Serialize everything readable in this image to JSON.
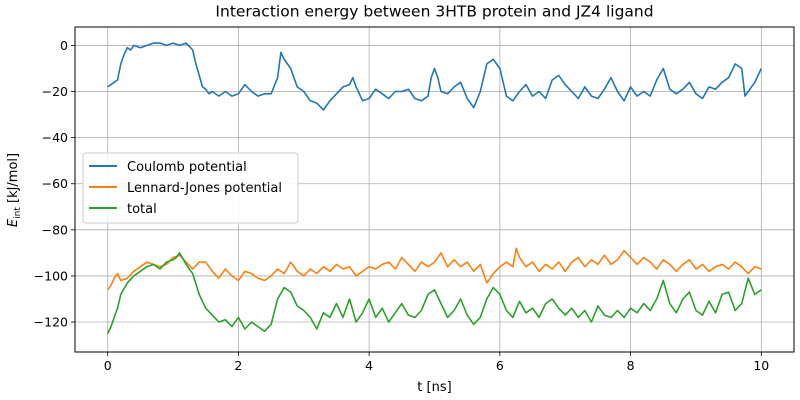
{
  "chart_data": {
    "type": "line",
    "title": "Interaction energy between 3HTB protein and JZ4 ligand",
    "xlabel": "t [ns]",
    "ylabel_main": "E",
    "ylabel_sub": "int",
    "ylabel_unit": " [kJ/mol]",
    "xlim": [
      -0.5,
      10.5
    ],
    "ylim": [
      -133,
      8
    ],
    "xticks": [
      0,
      2,
      4,
      6,
      8,
      10
    ],
    "yticks": [
      0,
      -20,
      -40,
      -60,
      -80,
      -100,
      -120
    ],
    "grid": true,
    "legend_position": "center-left",
    "series": [
      {
        "name": "Coulomb potential",
        "color": "#1f77b4",
        "points": [
          [
            0.0,
            -18
          ],
          [
            0.1,
            -16
          ],
          [
            0.15,
            -15
          ],
          [
            0.2,
            -8
          ],
          [
            0.25,
            -4
          ],
          [
            0.3,
            -1
          ],
          [
            0.35,
            -2
          ],
          [
            0.4,
            0
          ],
          [
            0.5,
            -1
          ],
          [
            0.6,
            0
          ],
          [
            0.7,
            1
          ],
          [
            0.8,
            1
          ],
          [
            0.9,
            0
          ],
          [
            1.0,
            1
          ],
          [
            1.1,
            0
          ],
          [
            1.2,
            1
          ],
          [
            1.3,
            -2
          ],
          [
            1.35,
            -8
          ],
          [
            1.4,
            -13
          ],
          [
            1.45,
            -18
          ],
          [
            1.5,
            -19
          ],
          [
            1.55,
            -21
          ],
          [
            1.6,
            -20
          ],
          [
            1.7,
            -22
          ],
          [
            1.8,
            -20
          ],
          [
            1.9,
            -22
          ],
          [
            2.0,
            -21
          ],
          [
            2.1,
            -17
          ],
          [
            2.2,
            -20
          ],
          [
            2.3,
            -22
          ],
          [
            2.4,
            -21
          ],
          [
            2.5,
            -21
          ],
          [
            2.6,
            -14
          ],
          [
            2.65,
            -3
          ],
          [
            2.7,
            -6
          ],
          [
            2.8,
            -10
          ],
          [
            2.9,
            -18
          ],
          [
            3.0,
            -20
          ],
          [
            3.1,
            -24
          ],
          [
            3.2,
            -25
          ],
          [
            3.3,
            -28
          ],
          [
            3.4,
            -24
          ],
          [
            3.5,
            -21
          ],
          [
            3.6,
            -18
          ],
          [
            3.7,
            -17
          ],
          [
            3.75,
            -14
          ],
          [
            3.8,
            -18
          ],
          [
            3.9,
            -24
          ],
          [
            4.0,
            -23
          ],
          [
            4.1,
            -19
          ],
          [
            4.2,
            -21
          ],
          [
            4.3,
            -23
          ],
          [
            4.4,
            -20
          ],
          [
            4.5,
            -20
          ],
          [
            4.6,
            -19
          ],
          [
            4.7,
            -23
          ],
          [
            4.8,
            -24
          ],
          [
            4.9,
            -22
          ],
          [
            4.95,
            -14
          ],
          [
            5.0,
            -10
          ],
          [
            5.05,
            -14
          ],
          [
            5.1,
            -20
          ],
          [
            5.2,
            -21
          ],
          [
            5.3,
            -18
          ],
          [
            5.4,
            -16
          ],
          [
            5.5,
            -23
          ],
          [
            5.6,
            -27
          ],
          [
            5.7,
            -20
          ],
          [
            5.8,
            -8
          ],
          [
            5.9,
            -6
          ],
          [
            6.0,
            -10
          ],
          [
            6.1,
            -22
          ],
          [
            6.2,
            -24
          ],
          [
            6.3,
            -20
          ],
          [
            6.4,
            -17
          ],
          [
            6.5,
            -22
          ],
          [
            6.6,
            -20
          ],
          [
            6.7,
            -23
          ],
          [
            6.8,
            -15
          ],
          [
            6.9,
            -13
          ],
          [
            7.0,
            -17
          ],
          [
            7.1,
            -20
          ],
          [
            7.2,
            -23
          ],
          [
            7.3,
            -18
          ],
          [
            7.4,
            -22
          ],
          [
            7.5,
            -23
          ],
          [
            7.6,
            -19
          ],
          [
            7.7,
            -14
          ],
          [
            7.8,
            -20
          ],
          [
            7.9,
            -24
          ],
          [
            8.0,
            -18
          ],
          [
            8.1,
            -22
          ],
          [
            8.2,
            -20
          ],
          [
            8.3,
            -22
          ],
          [
            8.4,
            -15
          ],
          [
            8.5,
            -10
          ],
          [
            8.6,
            -19
          ],
          [
            8.7,
            -21
          ],
          [
            8.8,
            -19
          ],
          [
            8.9,
            -16
          ],
          [
            9.0,
            -21
          ],
          [
            9.1,
            -23
          ],
          [
            9.2,
            -18
          ],
          [
            9.3,
            -19
          ],
          [
            9.4,
            -16
          ],
          [
            9.5,
            -14
          ],
          [
            9.6,
            -8
          ],
          [
            9.7,
            -10
          ],
          [
            9.75,
            -22
          ],
          [
            9.8,
            -20
          ],
          [
            9.9,
            -16
          ],
          [
            10.0,
            -10
          ]
        ]
      },
      {
        "name": "Lennard-Jones potential",
        "color": "#ff7f0e",
        "points": [
          [
            0.0,
            -106
          ],
          [
            0.05,
            -104
          ],
          [
            0.1,
            -101
          ],
          [
            0.15,
            -99
          ],
          [
            0.2,
            -102
          ],
          [
            0.3,
            -101
          ],
          [
            0.4,
            -98
          ],
          [
            0.5,
            -96
          ],
          [
            0.6,
            -94
          ],
          [
            0.7,
            -95
          ],
          [
            0.8,
            -96
          ],
          [
            0.9,
            -95
          ],
          [
            1.0,
            -92
          ],
          [
            1.1,
            -91
          ],
          [
            1.2,
            -94
          ],
          [
            1.3,
            -97
          ],
          [
            1.4,
            -94
          ],
          [
            1.5,
            -94
          ],
          [
            1.6,
            -98
          ],
          [
            1.7,
            -101
          ],
          [
            1.8,
            -97
          ],
          [
            1.9,
            -100
          ],
          [
            2.0,
            -102
          ],
          [
            2.1,
            -98
          ],
          [
            2.2,
            -99
          ],
          [
            2.3,
            -101
          ],
          [
            2.4,
            -102
          ],
          [
            2.5,
            -100
          ],
          [
            2.6,
            -97
          ],
          [
            2.7,
            -99
          ],
          [
            2.8,
            -94
          ],
          [
            2.9,
            -98
          ],
          [
            3.0,
            -100
          ],
          [
            3.1,
            -97
          ],
          [
            3.2,
            -99
          ],
          [
            3.3,
            -96
          ],
          [
            3.4,
            -98
          ],
          [
            3.5,
            -95
          ],
          [
            3.6,
            -97
          ],
          [
            3.7,
            -96
          ],
          [
            3.8,
            -100
          ],
          [
            3.9,
            -98
          ],
          [
            4.0,
            -96
          ],
          [
            4.1,
            -97
          ],
          [
            4.2,
            -95
          ],
          [
            4.3,
            -94
          ],
          [
            4.4,
            -97
          ],
          [
            4.5,
            -92
          ],
          [
            4.6,
            -95
          ],
          [
            4.7,
            -98
          ],
          [
            4.8,
            -94
          ],
          [
            4.9,
            -96
          ],
          [
            5.0,
            -94
          ],
          [
            5.1,
            -90
          ],
          [
            5.2,
            -96
          ],
          [
            5.3,
            -93
          ],
          [
            5.4,
            -96
          ],
          [
            5.5,
            -94
          ],
          [
            5.6,
            -98
          ],
          [
            5.7,
            -95
          ],
          [
            5.8,
            -103
          ],
          [
            5.9,
            -99
          ],
          [
            6.0,
            -96
          ],
          [
            6.1,
            -94
          ],
          [
            6.2,
            -96
          ],
          [
            6.25,
            -88
          ],
          [
            6.3,
            -92
          ],
          [
            6.4,
            -96
          ],
          [
            6.5,
            -94
          ],
          [
            6.6,
            -98
          ],
          [
            6.7,
            -95
          ],
          [
            6.8,
            -97
          ],
          [
            6.9,
            -94
          ],
          [
            7.0,
            -98
          ],
          [
            7.1,
            -94
          ],
          [
            7.2,
            -92
          ],
          [
            7.3,
            -96
          ],
          [
            7.4,
            -93
          ],
          [
            7.5,
            -95
          ],
          [
            7.6,
            -91
          ],
          [
            7.7,
            -95
          ],
          [
            7.8,
            -93
          ],
          [
            7.9,
            -89
          ],
          [
            8.0,
            -92
          ],
          [
            8.1,
            -95
          ],
          [
            8.2,
            -92
          ],
          [
            8.3,
            -94
          ],
          [
            8.4,
            -97
          ],
          [
            8.5,
            -93
          ],
          [
            8.6,
            -95
          ],
          [
            8.7,
            -98
          ],
          [
            8.8,
            -95
          ],
          [
            8.9,
            -93
          ],
          [
            9.0,
            -97
          ],
          [
            9.1,
            -95
          ],
          [
            9.2,
            -98
          ],
          [
            9.3,
            -96
          ],
          [
            9.4,
            -95
          ],
          [
            9.5,
            -97
          ],
          [
            9.6,
            -94
          ],
          [
            9.7,
            -96
          ],
          [
            9.8,
            -99
          ],
          [
            9.9,
            -96
          ],
          [
            10.0,
            -97
          ]
        ]
      },
      {
        "name": "total",
        "color": "#2ca02c",
        "points": [
          [
            0.0,
            -125
          ],
          [
            0.05,
            -122
          ],
          [
            0.1,
            -118
          ],
          [
            0.15,
            -114
          ],
          [
            0.2,
            -108
          ],
          [
            0.3,
            -103
          ],
          [
            0.4,
            -100
          ],
          [
            0.5,
            -98
          ],
          [
            0.6,
            -96
          ],
          [
            0.7,
            -95
          ],
          [
            0.8,
            -97
          ],
          [
            0.9,
            -94
          ],
          [
            1.0,
            -93
          ],
          [
            1.05,
            -92
          ],
          [
            1.1,
            -90
          ],
          [
            1.2,
            -95
          ],
          [
            1.3,
            -99
          ],
          [
            1.4,
            -108
          ],
          [
            1.5,
            -114
          ],
          [
            1.6,
            -117
          ],
          [
            1.7,
            -120
          ],
          [
            1.8,
            -119
          ],
          [
            1.9,
            -122
          ],
          [
            2.0,
            -118
          ],
          [
            2.1,
            -123
          ],
          [
            2.2,
            -120
          ],
          [
            2.3,
            -122
          ],
          [
            2.4,
            -124
          ],
          [
            2.5,
            -121
          ],
          [
            2.6,
            -110
          ],
          [
            2.7,
            -105
          ],
          [
            2.8,
            -107
          ],
          [
            2.9,
            -113
          ],
          [
            3.0,
            -115
          ],
          [
            3.1,
            -118
          ],
          [
            3.2,
            -123
          ],
          [
            3.3,
            -116
          ],
          [
            3.4,
            -118
          ],
          [
            3.5,
            -112
          ],
          [
            3.6,
            -118
          ],
          [
            3.7,
            -110
          ],
          [
            3.8,
            -120
          ],
          [
            3.9,
            -116
          ],
          [
            4.0,
            -110
          ],
          [
            4.1,
            -118
          ],
          [
            4.2,
            -114
          ],
          [
            4.3,
            -120
          ],
          [
            4.4,
            -116
          ],
          [
            4.5,
            -112
          ],
          [
            4.6,
            -117
          ],
          [
            4.7,
            -118
          ],
          [
            4.8,
            -115
          ],
          [
            4.9,
            -108
          ],
          [
            5.0,
            -106
          ],
          [
            5.1,
            -112
          ],
          [
            5.2,
            -118
          ],
          [
            5.3,
            -115
          ],
          [
            5.4,
            -110
          ],
          [
            5.5,
            -117
          ],
          [
            5.6,
            -121
          ],
          [
            5.7,
            -118
          ],
          [
            5.8,
            -110
          ],
          [
            5.9,
            -105
          ],
          [
            6.0,
            -108
          ],
          [
            6.1,
            -115
          ],
          [
            6.2,
            -118
          ],
          [
            6.3,
            -111
          ],
          [
            6.4,
            -116
          ],
          [
            6.5,
            -114
          ],
          [
            6.6,
            -118
          ],
          [
            6.7,
            -112
          ],
          [
            6.8,
            -110
          ],
          [
            6.9,
            -114
          ],
          [
            7.0,
            -117
          ],
          [
            7.1,
            -114
          ],
          [
            7.2,
            -118
          ],
          [
            7.3,
            -115
          ],
          [
            7.4,
            -120
          ],
          [
            7.5,
            -113
          ],
          [
            7.6,
            -117
          ],
          [
            7.7,
            -118
          ],
          [
            7.8,
            -115
          ],
          [
            7.9,
            -118
          ],
          [
            8.0,
            -114
          ],
          [
            8.1,
            -116
          ],
          [
            8.2,
            -112
          ],
          [
            8.3,
            -115
          ],
          [
            8.4,
            -110
          ],
          [
            8.5,
            -102
          ],
          [
            8.6,
            -112
          ],
          [
            8.7,
            -116
          ],
          [
            8.8,
            -110
          ],
          [
            8.9,
            -107
          ],
          [
            9.0,
            -115
          ],
          [
            9.1,
            -117
          ],
          [
            9.2,
            -111
          ],
          [
            9.3,
            -116
          ],
          [
            9.4,
            -108
          ],
          [
            9.5,
            -107
          ],
          [
            9.6,
            -115
          ],
          [
            9.7,
            -112
          ],
          [
            9.8,
            -101
          ],
          [
            9.9,
            -108
          ],
          [
            10.0,
            -106
          ]
        ]
      }
    ]
  }
}
